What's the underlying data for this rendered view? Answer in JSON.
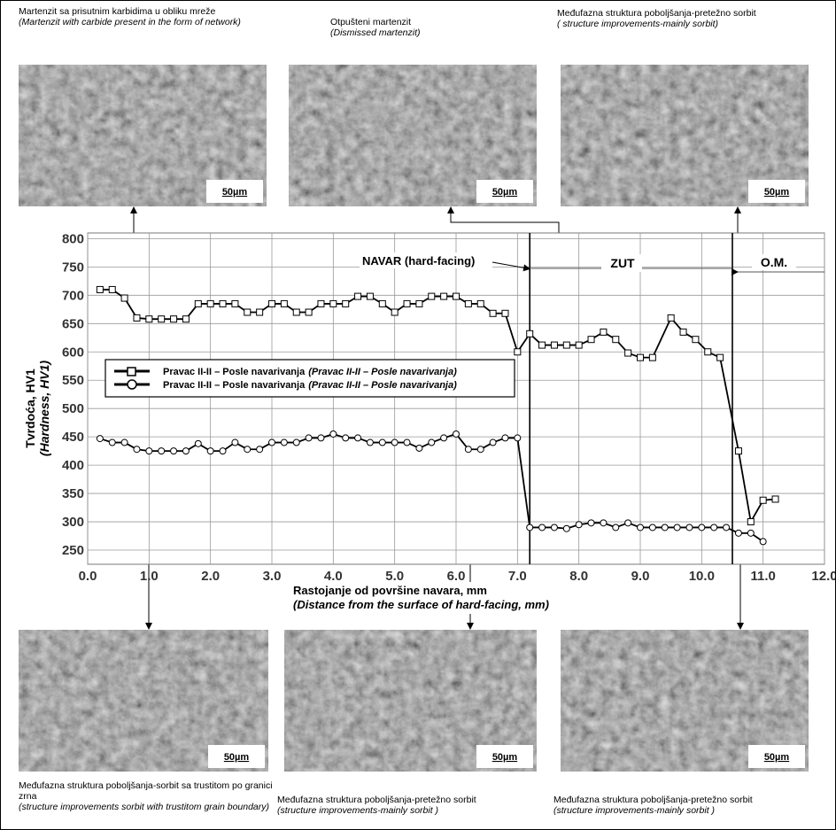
{
  "panels": [
    {
      "caption": "Martenzit sa prisutnim karbidima u obliku mreže",
      "caption_en": "(Martenzit with carbide present in the form of network)",
      "scale": "50µm"
    },
    {
      "caption": "Otpušteni martenzit",
      "caption_en": "(Dismissed martenzit)",
      "scale": "50µm"
    },
    {
      "caption": "Međufazna struktura poboljšanja-pretežno sorbit",
      "caption_en": "( structure improvements-mainly sorbit)",
      "scale": "50µm"
    },
    {
      "caption": "Međufazna struktura poboljšanja-sorbit sa trustitom po granici zrna",
      "caption_en": "(structure improvements sorbit with trustitom grain boundary)",
      "scale": "50µm"
    },
    {
      "caption": "Međufazna struktura poboljšanja-pretežno sorbit",
      "caption_en": "(structure improvements-mainly sorbit )",
      "scale": "50µm"
    },
    {
      "caption": "Međufazna struktura poboljšanja-pretežno sorbit",
      "caption_en": "(structure improvements-mainly sorbit )",
      "scale": "50µm"
    }
  ],
  "chart_data": {
    "type": "line",
    "x_label": "Rastojanje od površine navara, mm",
    "x_label_en": "(Distance from the surface of hard-facing, mm)",
    "y_label": "Tvrdoća, HV1",
    "y_label_en": "(Hardness, HV1)",
    "xlim": [
      0,
      12
    ],
    "xticks": [
      {
        "value": 0,
        "label": "0.0"
      },
      {
        "value": 1,
        "label": "1.0"
      },
      {
        "value": 2,
        "label": "2.0"
      },
      {
        "value": 3,
        "label": "3.0"
      },
      {
        "value": 4,
        "label": "4.0"
      },
      {
        "value": 5,
        "label": "5.0"
      },
      {
        "value": 6,
        "label": "6.0"
      },
      {
        "value": 7,
        "label": "7.0"
      },
      {
        "value": 8,
        "label": "8.0"
      },
      {
        "value": 9,
        "label": "9.0"
      },
      {
        "value": 10,
        "label": "10.0"
      },
      {
        "value": 11,
        "label": "11.0"
      },
      {
        "value": 12,
        "label": "12.0"
      }
    ],
    "ylim": [
      225,
      810
    ],
    "yticks": [
      250,
      300,
      350,
      400,
      450,
      500,
      550,
      600,
      650,
      700,
      750,
      800
    ],
    "grid": true,
    "zone_boundaries": [
      7.2,
      10.5
    ],
    "annotations": [
      "NAVAR (hard-facing)",
      "ZUT",
      "O.M."
    ],
    "series": [
      {
        "name": "Pravac II-II – Posle navarivanja",
        "name_en": "(Pravac II-II – Posle navarivanja)",
        "marker": "square",
        "color": "#000000",
        "x": [
          0.2,
          0.4,
          0.6,
          0.8,
          1.0,
          1.2,
          1.4,
          1.6,
          1.8,
          2.0,
          2.2,
          2.4,
          2.6,
          2.8,
          3.0,
          3.2,
          3.4,
          3.6,
          3.8,
          4.0,
          4.2,
          4.4,
          4.6,
          4.8,
          5.0,
          5.2,
          5.4,
          5.6,
          5.8,
          6.0,
          6.2,
          6.4,
          6.6,
          6.8,
          7.0,
          7.2,
          7.4,
          7.6,
          7.8,
          8.0,
          8.2,
          8.4,
          8.6,
          8.8,
          9.0,
          9.2,
          9.5,
          9.7,
          9.9,
          10.1,
          10.3,
          10.6,
          10.8,
          11.0,
          11.2
        ],
        "values": [
          710,
          710,
          695,
          660,
          658,
          658,
          658,
          658,
          685,
          685,
          685,
          685,
          670,
          670,
          685,
          685,
          670,
          670,
          685,
          685,
          685,
          698,
          698,
          685,
          670,
          685,
          685,
          698,
          698,
          698,
          685,
          685,
          668,
          668,
          600,
          632,
          612,
          612,
          612,
          612,
          622,
          635,
          622,
          598,
          590,
          590,
          660,
          635,
          622,
          600,
          590,
          425,
          300,
          338,
          340
        ]
      },
      {
        "name": "Pravac II-II – Posle navarivanja",
        "name_en": "(Pravac II-II – Posle navarivanja)",
        "marker": "circle",
        "color": "#000000",
        "x": [
          0.2,
          0.4,
          0.6,
          0.8,
          1.0,
          1.2,
          1.4,
          1.6,
          1.8,
          2.0,
          2.2,
          2.4,
          2.6,
          2.8,
          3.0,
          3.2,
          3.4,
          3.6,
          3.8,
          4.0,
          4.2,
          4.4,
          4.6,
          4.8,
          5.0,
          5.2,
          5.4,
          5.6,
          5.8,
          6.0,
          6.2,
          6.4,
          6.6,
          6.8,
          7.0,
          7.2,
          7.4,
          7.6,
          7.8,
          8.0,
          8.2,
          8.4,
          8.6,
          8.8,
          9.0,
          9.2,
          9.4,
          9.6,
          9.8,
          10.0,
          10.2,
          10.4,
          10.6,
          10.8,
          11.0
        ],
        "values": [
          447,
          440,
          440,
          428,
          425,
          425,
          425,
          425,
          438,
          425,
          425,
          440,
          428,
          428,
          440,
          440,
          440,
          448,
          448,
          455,
          448,
          448,
          440,
          440,
          440,
          440,
          430,
          440,
          448,
          455,
          428,
          428,
          440,
          448,
          448,
          290,
          290,
          290,
          288,
          295,
          298,
          298,
          290,
          298,
          290,
          290,
          290,
          290,
          290,
          290,
          290,
          290,
          280,
          280,
          265
        ]
      }
    ]
  }
}
